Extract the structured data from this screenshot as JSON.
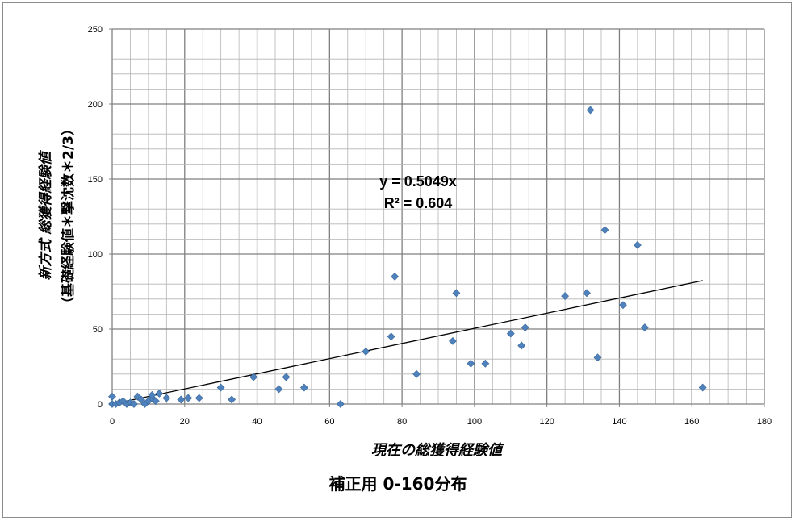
{
  "chart_data": {
    "type": "scatter",
    "xlabel": "現在の総獲得経験値",
    "ylabel": "新方式 総獲得経験値",
    "ylabel2": "（基礎経験値＊撃沈数＊2/3）",
    "caption": "補正用 0-160分布",
    "xlim": [
      0,
      180
    ],
    "ylim": [
      0,
      250
    ],
    "x_ticks": [
      0,
      20,
      40,
      60,
      80,
      100,
      120,
      140,
      160,
      180
    ],
    "y_ticks": [
      0,
      50,
      100,
      150,
      200,
      250
    ],
    "grid": true,
    "marker_color": "#4F81BD",
    "trendline": {
      "slope": 0.5049,
      "x_range": [
        0,
        163
      ],
      "equation": "y = 0.5049x",
      "r_squared": "R² = 0.604"
    },
    "points": [
      [
        0,
        5
      ],
      [
        0,
        0
      ],
      [
        1,
        0
      ],
      [
        2,
        1
      ],
      [
        3,
        2
      ],
      [
        4,
        0
      ],
      [
        5,
        1
      ],
      [
        6,
        0
      ],
      [
        7,
        5
      ],
      [
        8,
        3
      ],
      [
        9,
        0
      ],
      [
        10,
        2
      ],
      [
        11,
        4
      ],
      [
        11,
        6
      ],
      [
        12,
        2
      ],
      [
        13,
        7
      ],
      [
        15,
        4
      ],
      [
        19,
        3
      ],
      [
        21,
        4
      ],
      [
        24,
        4
      ],
      [
        30,
        11
      ],
      [
        33,
        3
      ],
      [
        39,
        18
      ],
      [
        46,
        10
      ],
      [
        48,
        18
      ],
      [
        53,
        11
      ],
      [
        63,
        0
      ],
      [
        70,
        35
      ],
      [
        77,
        45
      ],
      [
        78,
        85
      ],
      [
        84,
        20
      ],
      [
        94,
        42
      ],
      [
        95,
        74
      ],
      [
        99,
        27
      ],
      [
        103,
        27
      ],
      [
        110,
        47
      ],
      [
        113,
        39
      ],
      [
        114,
        51
      ],
      [
        125,
        72
      ],
      [
        131,
        74
      ],
      [
        132,
        196
      ],
      [
        134,
        31
      ],
      [
        136,
        116
      ],
      [
        141,
        66
      ],
      [
        145,
        106
      ],
      [
        147,
        51
      ],
      [
        163,
        11
      ]
    ]
  }
}
